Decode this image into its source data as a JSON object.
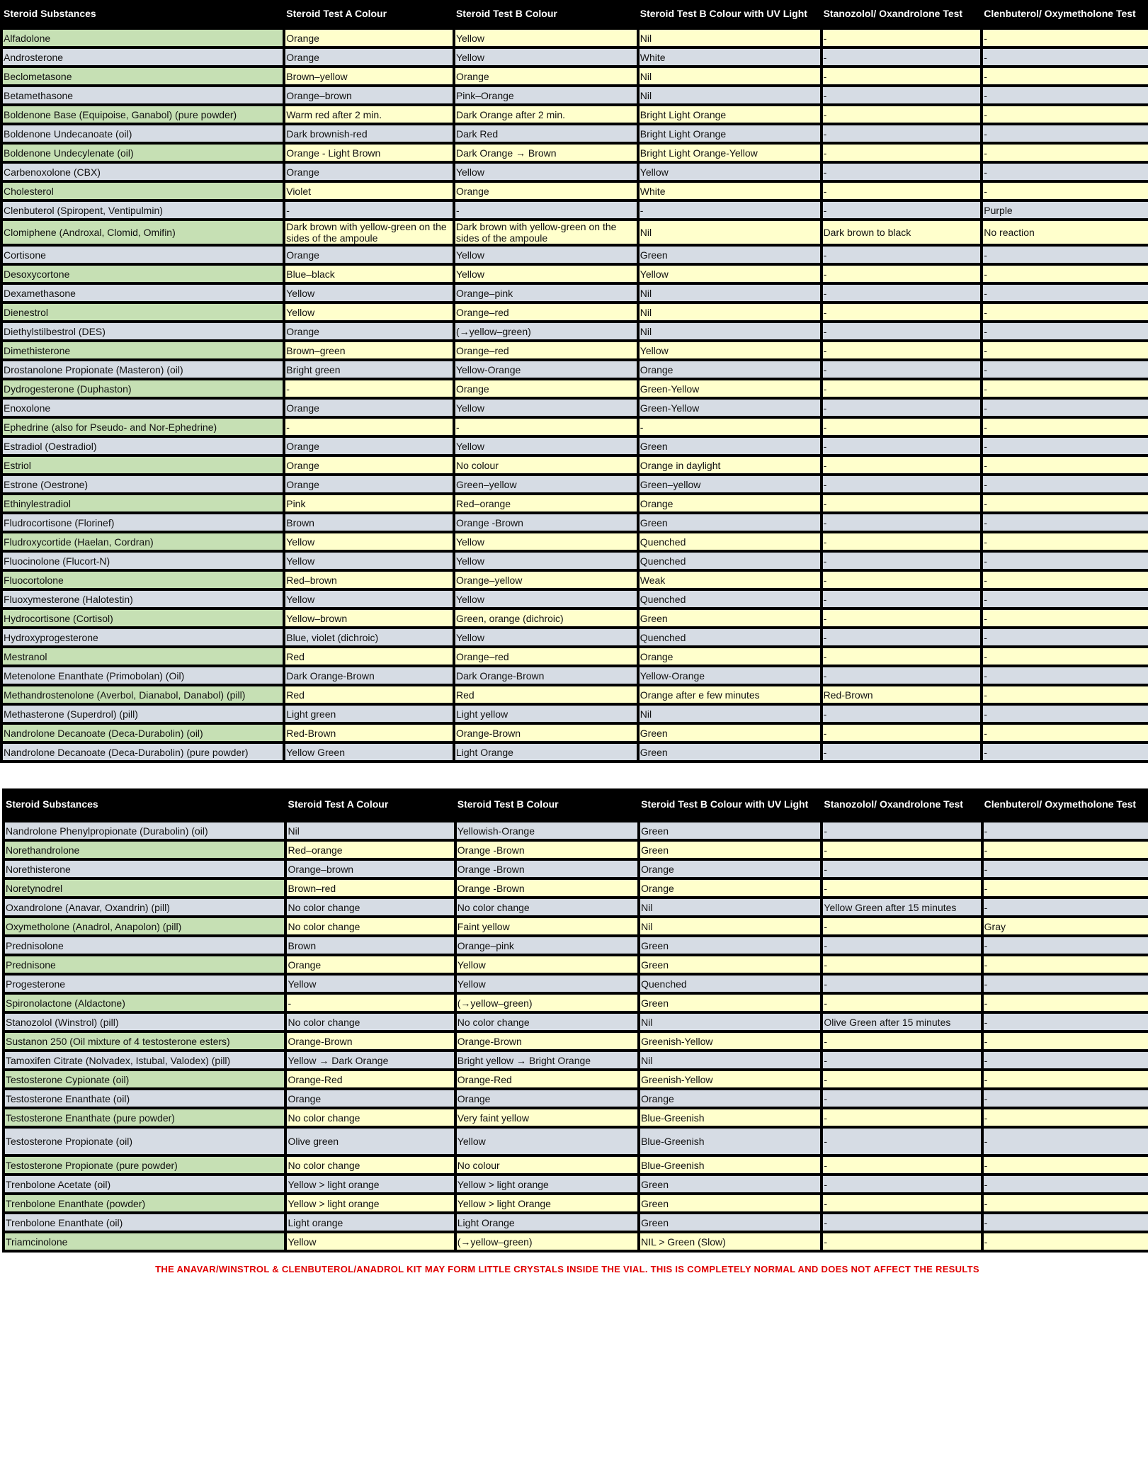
{
  "colors": {
    "header_bg": "#000000",
    "name_highlight": "#c6e0b4",
    "value_highlight": "#ffffcc",
    "plain_row": "#d6dce4",
    "note_text": "#e00000"
  },
  "tables": [
    {
      "headers": [
        "Steroid Substances",
        "Steroid Test A Colour",
        "Steroid Test B Colour",
        "Steroid Test B Colour with UV Light",
        "Stanozolol/ Oxandrolone Test",
        "Clenbuterol/ Oxymetholone Test"
      ],
      "rows": [
        [
          "Alfadolone",
          "Orange",
          "Yellow",
          "Nil",
          "-",
          "-"
        ],
        [
          "Androsterone",
          "Orange",
          "Yellow",
          "White",
          "-",
          "-"
        ],
        [
          "Beclometasone",
          "Brown–yellow",
          "Orange",
          "Nil",
          "-",
          "-"
        ],
        [
          "Betamethasone",
          "Orange–brown",
          "Pink–Orange",
          "Nil",
          "-",
          "-"
        ],
        [
          "Boldenone Base (Equipoise, Ganabol) (pure powder)",
          "Warm red after 2 min.",
          "Dark Orange after 2 min.",
          "Bright Light Orange",
          "-",
          "-"
        ],
        [
          "Boldenone Undecanoate (oil)",
          "Dark brownish-red",
          "Dark Red",
          "Bright Light Orange",
          "-",
          "-"
        ],
        [
          "Boldenone Undecylenate (oil)",
          "Orange - Light Brown",
          "Dark Orange → Brown",
          "Bright Light Orange-Yellow",
          "-",
          "-"
        ],
        [
          "Carbenoxolone (CBX)",
          "Orange",
          "Yellow",
          "Yellow",
          "-",
          "-"
        ],
        [
          "Cholesterol",
          "Violet",
          "Orange",
          "White",
          "-",
          "-"
        ],
        [
          "Clenbuterol (Spiropent, Ventipulmin)",
          "-",
          "-",
          "-",
          "-",
          "Purple"
        ],
        [
          "Clomiphene  (Androxal, Clomid, Omifin)",
          "Dark brown with yellow-green on the sides of the ampoule",
          "Dark brown with yellow-green on the sides of the ampoule",
          "Nil",
          "Dark brown to black",
          "No reaction"
        ],
        [
          "Cortisone",
          "Orange",
          "Yellow",
          "Green",
          "-",
          "-"
        ],
        [
          "Desoxycortone",
          "Blue–black",
          "Yellow",
          "Yellow",
          "-",
          "-"
        ],
        [
          "Dexamethasone",
          "Yellow",
          "Orange–pink",
          "Nil",
          "-",
          "-"
        ],
        [
          "Dienestrol",
          "Yellow",
          "Orange–red",
          "Nil",
          "-",
          "-"
        ],
        [
          "Diethylstilbestrol (DES)",
          "Orange",
          "(→yellow–green)",
          "Nil",
          "-",
          "-"
        ],
        [
          "Dimethisterone",
          "Brown–green",
          "Orange–red",
          "Yellow",
          "-",
          "-"
        ],
        [
          "Drostanolone Propionate (Masteron) (oil)",
          "Bright green",
          "Yellow-Orange",
          "Orange",
          "-",
          "-"
        ],
        [
          "Dydrogesterone (Duphaston)",
          "-",
          "Orange",
          "Green-Yellow",
          "-",
          "-"
        ],
        [
          "Enoxolone",
          "Orange",
          "Yellow",
          "Green-Yellow",
          "-",
          "-"
        ],
        [
          "Ephedrine (also for Pseudo- and Nor-Ephedrine)",
          "-",
          "-",
          "-",
          "-",
          "-"
        ],
        [
          "Estradiol (Oestradiol)",
          "Orange",
          "Yellow",
          "Green",
          "-",
          "-"
        ],
        [
          "Estriol",
          "Orange",
          "No colour",
          "Orange in daylight",
          "-",
          "-"
        ],
        [
          "Estrone (Oestrone)",
          "Orange",
          "Green–yellow",
          "Green–yellow",
          "-",
          "-"
        ],
        [
          "Ethinylestradiol",
          "Pink",
          "Red–orange",
          "Orange",
          "-",
          "-"
        ],
        [
          "Fludrocortisone (Florinef)",
          "Brown",
          "Orange -Brown",
          "Green",
          "-",
          "-"
        ],
        [
          "Fludroxycortide (Haelan, Cordran)",
          "Yellow",
          "Yellow",
          "Quenched",
          "-",
          "-"
        ],
        [
          "Fluocinolone (Flucort-N)",
          "Yellow",
          "Yellow",
          "Quenched",
          "-",
          "-"
        ],
        [
          "Fluocortolone",
          "Red–brown",
          "Orange–yellow",
          "Weak",
          "-",
          "-"
        ],
        [
          "Fluoxymesterone (Halotestin)",
          "Yellow",
          "Yellow",
          "Quenched",
          "-",
          "-"
        ],
        [
          "Hydrocortisone (Cortisol)",
          "Yellow–brown",
          "Green, orange (dichroic)",
          "Green",
          "-",
          "-"
        ],
        [
          "Hydroxyprogesterone",
          "Blue, violet (dichroic)",
          "Yellow",
          "Quenched",
          "-",
          "-"
        ],
        [
          "Mestranol",
          "Red",
          "Orange–red",
          "Orange",
          "-",
          "-"
        ],
        [
          "Metenolone Enanthate (Primobolan) (Oil)",
          "Dark Orange-Brown",
          "Dark Orange-Brown",
          "Yellow-Orange",
          "-",
          "-"
        ],
        [
          "Methandrostenolone (Averbol, Dianabol, Danabol) (pill)",
          "Red",
          "Red",
          "Orange after e few minutes",
          "Red-Brown",
          "-"
        ],
        [
          "Methasterone (Superdrol) (pill)",
          "Light green",
          "Light yellow",
          "Nil",
          "-",
          "-"
        ],
        [
          "Nandrolone Decanoate (Deca-Durabolin) (oil)",
          "Red-Brown",
          "Orange-Brown",
          "Green",
          "-",
          "-"
        ],
        [
          "Nandrolone Decanoate (Deca-Durabolin) (pure powder)",
          "Yellow Green",
          "Light Orange",
          "Green",
          "-",
          "-"
        ]
      ]
    },
    {
      "headers": [
        "Steroid Substances",
        "Steroid Test A Colour",
        "Steroid Test B Colour",
        "Steroid Test B Colour with UV Light",
        "Stanozolol/ Oxandrolone Test",
        "Clenbuterol/ Oxymetholone Test"
      ],
      "rows": [
        [
          "Nandrolone Phenylpropionate (Durabolin) (oil)",
          "Nil",
          "Yellowish-Orange",
          "Green",
          "-",
          "-"
        ],
        [
          "Norethandrolone",
          "Red–orange",
          "Orange -Brown",
          "Green",
          "-",
          "-"
        ],
        [
          "Norethisterone",
          "Orange–brown",
          "Orange -Brown",
          "Orange",
          "-",
          "-"
        ],
        [
          "Noretynodrel",
          "Brown–red",
          "Orange -Brown",
          "Orange",
          "-",
          "-"
        ],
        [
          "Oxandrolone (Anavar, Oxandrin) (pill)",
          "No color change",
          "No color change",
          "Nil",
          "Yellow Green after 15 minutes",
          "-"
        ],
        [
          "Oxymetholone (Anadrol, Anapolon) (pill)",
          "No color change",
          "Faint yellow",
          "Nil",
          "-",
          "Gray"
        ],
        [
          "Prednisolone",
          "Brown",
          "Orange–pink",
          "Green",
          "-",
          "-"
        ],
        [
          "Prednisone",
          "Orange",
          "Yellow",
          "Green",
          "-",
          "-"
        ],
        [
          "Progesterone",
          "Yellow",
          "Yellow",
          "Quenched",
          "-",
          "-"
        ],
        [
          "Spironolactone (Aldactone)",
          "-",
          "(→yellow–green)",
          "Green",
          "-",
          "-"
        ],
        [
          "Stanozolol (Winstrol) (pill)",
          "No color change",
          "No color change",
          "Nil",
          "Olive Green after 15 minutes",
          "-"
        ],
        [
          "Sustanon 250 (Oil mixture of 4 testosterone esters)",
          "Orange-Brown",
          "Orange-Brown",
          "Greenish-Yellow",
          "-",
          "-"
        ],
        [
          "Tamoxifen Citrate (Nolvadex, Istubal, Valodex) (pill)",
          "Yellow → Dark Orange",
          "Bright yellow → Bright Orange",
          "Nil",
          "-",
          "-"
        ],
        [
          "Testosterone Cypionate (oil)",
          "Orange-Red",
          "Orange-Red",
          "Greenish-Yellow",
          "-",
          "-"
        ],
        [
          "Testosterone Enanthate (oil)",
          "Orange",
          "Orange",
          "Orange",
          "-",
          "-"
        ],
        [
          "Testosterone Enanthate (pure powder)",
          "No color change",
          "Very faint yellow",
          "Blue-Greenish",
          "-",
          "-"
        ],
        [
          "Testosterone Propionate (oil)",
          "Olive green",
          "Yellow",
          "Blue-Greenish",
          "-",
          "-"
        ],
        [
          "Testosterone Propionate (pure powder)",
          "No color change",
          "No colour",
          "Blue-Greenish",
          "-",
          "-"
        ],
        [
          "Trenbolone Acetate (oil)",
          "Yellow > light orange",
          "Yellow > light orange",
          "Green",
          "-",
          "-"
        ],
        [
          "Trenbolone Enanthate (powder)",
          "Yellow > light orange",
          "Yellow > light Orange",
          "Green",
          "-",
          "-"
        ],
        [
          "Trenbolone Enanthate (oil)",
          "Light orange",
          "Light Orange",
          "Green",
          "-",
          "-"
        ],
        [
          "Triamcinolone",
          "Yellow",
          "(→yellow–green)",
          "NIL > Green (Slow)",
          "-",
          "-"
        ]
      ]
    }
  ],
  "footer_note": "THE ANAVAR/WINSTROL & CLENBUTEROL/ANADROL KIT MAY FORM LITTLE CRYSTALS INSIDE THE VIAL. THIS IS COMPLETELY NORMAL AND DOES NOT AFFECT THE RESULTS"
}
